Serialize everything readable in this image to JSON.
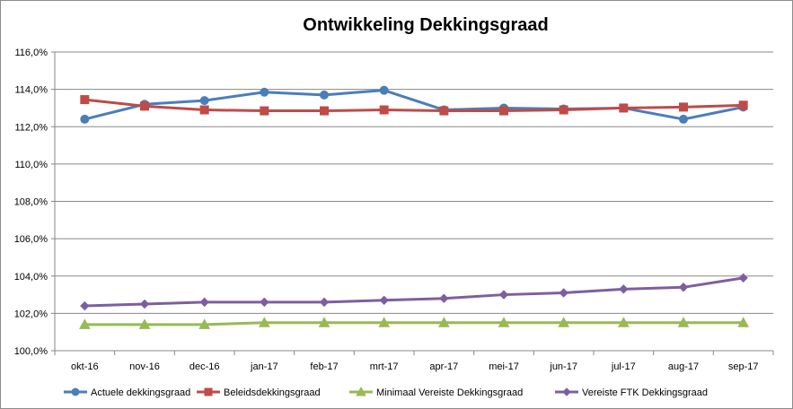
{
  "chart_data": {
    "type": "line",
    "title": "Ontwikkeling Dekkingsgraad",
    "xlabel": "",
    "ylabel": "",
    "categories": [
      "okt-16",
      "nov-16",
      "dec-16",
      "jan-17",
      "feb-17",
      "mrt-17",
      "apr-17",
      "mei-17",
      "jun-17",
      "jul-17",
      "aug-17",
      "sep-17"
    ],
    "ylim": [
      100,
      116
    ],
    "ytick_step": 2,
    "y_tick_labels": [
      "100,0%",
      "102,0%",
      "104,0%",
      "106,0%",
      "108,0%",
      "110,0%",
      "112,0%",
      "114,0%",
      "116,0%"
    ],
    "grid": true,
    "legend_position": "bottom",
    "series": [
      {
        "name": "Actuele dekkingsgraad",
        "color": "#4a7ebb",
        "marker": "circle",
        "values": [
          112.4,
          113.2,
          113.4,
          113.85,
          113.7,
          113.95,
          112.9,
          113.0,
          112.95,
          113.0,
          112.4,
          113.05
        ]
      },
      {
        "name": "Beleidsdekkingsgraad",
        "color": "#be4b48",
        "marker": "square",
        "values": [
          113.45,
          113.1,
          112.9,
          112.85,
          112.85,
          112.9,
          112.85,
          112.85,
          112.9,
          113.0,
          113.05,
          113.15
        ]
      },
      {
        "name": "Minimaal Vereiste Dekkingsgraad",
        "color": "#98b954",
        "marker": "triangle",
        "values": [
          101.4,
          101.4,
          101.4,
          101.5,
          101.5,
          101.5,
          101.5,
          101.5,
          101.5,
          101.5,
          101.5,
          101.5
        ]
      },
      {
        "name": "Vereiste FTK Dekkingsgraad",
        "color": "#7d5fa0",
        "marker": "diamond",
        "values": [
          102.4,
          102.5,
          102.6,
          102.6,
          102.6,
          102.7,
          102.8,
          103.0,
          103.1,
          103.3,
          103.4,
          103.9
        ]
      }
    ]
  }
}
